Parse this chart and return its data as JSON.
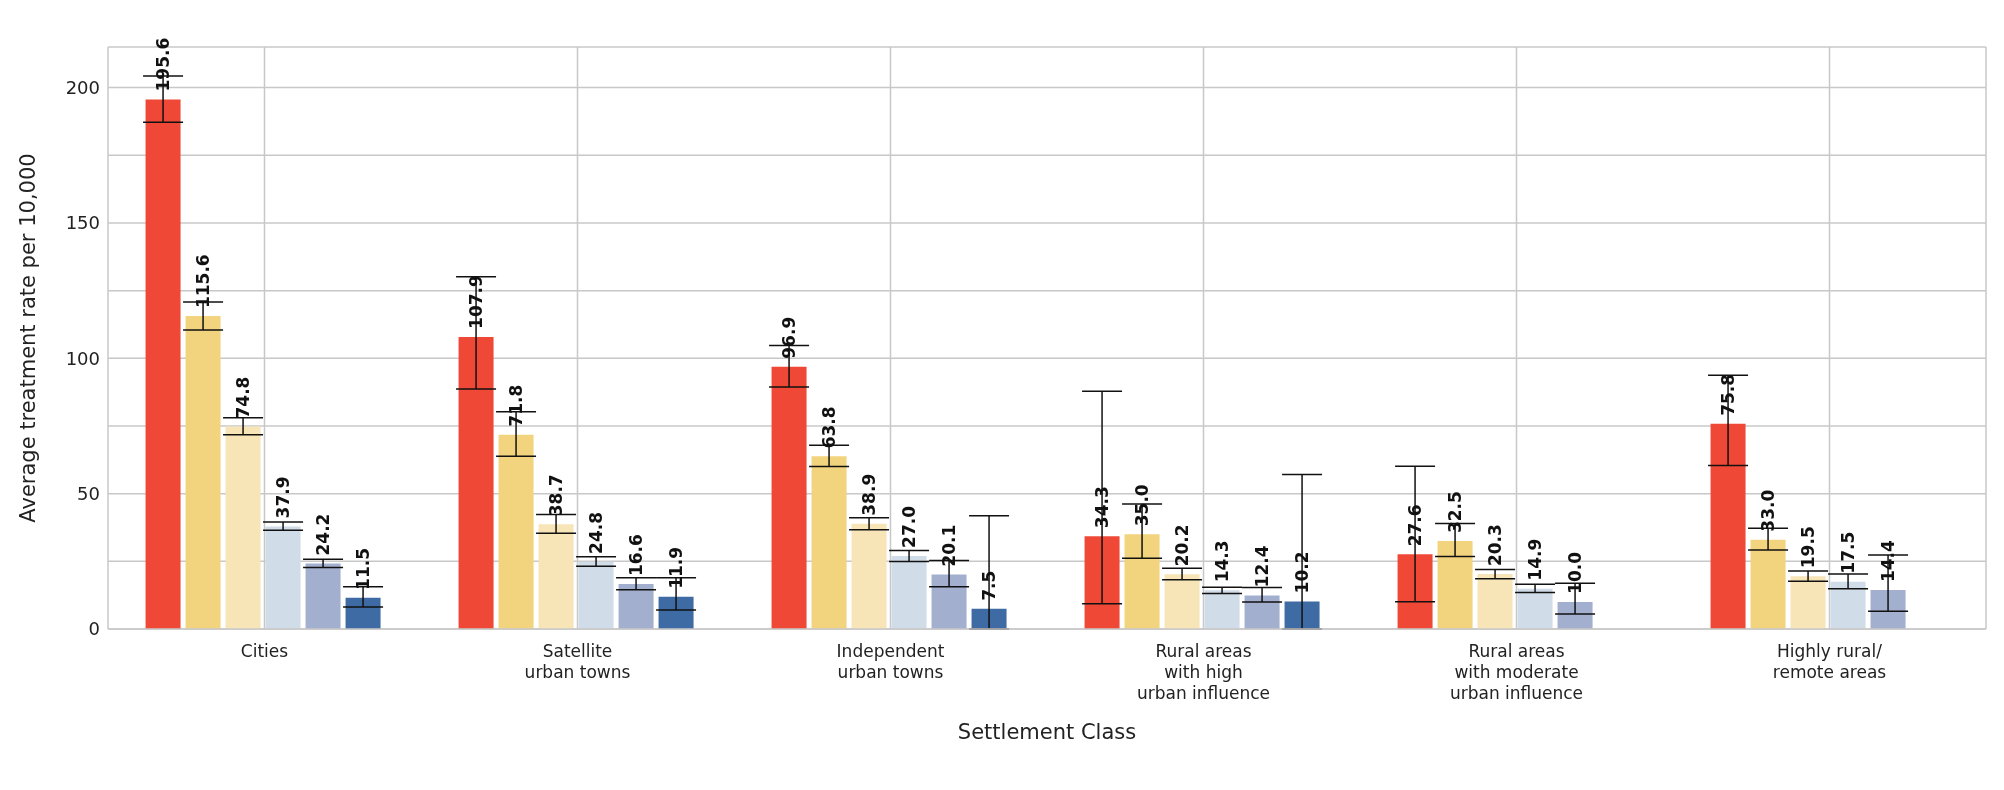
{
  "chart_data": {
    "type": "bar",
    "xlabel": "Settlement Class",
    "ylabel": "Average treatment rate per 10,000",
    "categories": [
      "Cities",
      "Satellite\nurban towns",
      "Independent\nurban towns",
      "Rural areas\nwith high\nurban influence",
      "Rural areas\nwith moderate\nurban influence",
      "Highly rural/\nremote areas"
    ],
    "series": [
      {
        "color": "#ef4836",
        "value_labels": [
          "195.6",
          "107.9",
          "96.9",
          "34.3",
          "27.6",
          "75.8"
        ],
        "values": [
          195.6,
          107.9,
          96.9,
          34.3,
          27.6,
          75.8
        ],
        "errors": [
          [
            187.2,
            204.3
          ],
          [
            88.7,
            130.1
          ],
          [
            89.4,
            104.7
          ],
          [
            9.3,
            87.8
          ],
          [
            10.1,
            60.1
          ],
          [
            60.4,
            93.7
          ]
        ]
      },
      {
        "color": "#f2d37e",
        "value_labels": [
          "115.6",
          "71.8",
          "63.8",
          "35.0",
          "32.5",
          "33.0"
        ],
        "values": [
          115.6,
          71.8,
          63.8,
          35.0,
          32.5,
          33.0
        ],
        "errors": [
          [
            110.5,
            120.8
          ],
          [
            63.8,
            80.3
          ],
          [
            60.0,
            67.9
          ],
          [
            26.1,
            46.2
          ],
          [
            26.8,
            39.0
          ],
          [
            29.2,
            37.2
          ]
        ]
      },
      {
        "color": "#f7e5b7",
        "value_labels": [
          "74.8",
          "38.7",
          "38.9",
          "20.2",
          "20.3",
          "19.5"
        ],
        "values": [
          74.8,
          38.7,
          38.9,
          20.2,
          20.3,
          19.5
        ],
        "errors": [
          [
            71.8,
            78.0
          ],
          [
            35.4,
            42.3
          ],
          [
            36.7,
            41.1
          ],
          [
            18.2,
            22.4
          ],
          [
            18.6,
            22.0
          ],
          [
            17.6,
            21.4
          ]
        ]
      },
      {
        "color": "#d0dce8",
        "value_labels": [
          "37.9",
          "24.8",
          "27.0",
          "14.3",
          "14.9",
          "17.5"
        ],
        "values": [
          37.9,
          24.8,
          27.0,
          14.3,
          14.9,
          17.5
        ],
        "errors": [
          [
            36.5,
            39.5
          ],
          [
            23.2,
            26.7
          ],
          [
            24.9,
            29.0
          ],
          [
            13.1,
            15.4
          ],
          [
            13.5,
            16.5
          ],
          [
            14.9,
            20.3
          ]
        ]
      },
      {
        "color": "#a2afcf",
        "value_labels": [
          "24.2",
          "16.6",
          "20.1",
          "12.4",
          "10.0",
          "14.4"
        ],
        "values": [
          24.2,
          16.6,
          20.1,
          12.4,
          10.0,
          14.4
        ],
        "errors": [
          [
            22.7,
            25.8
          ],
          [
            14.5,
            18.9
          ],
          [
            15.6,
            25.3
          ],
          [
            10.0,
            15.3
          ],
          [
            5.5,
            16.9
          ],
          [
            6.6,
            27.3
          ]
        ]
      },
      {
        "color": "#3f6ba4",
        "value_labels": [
          "11.5",
          "11.9",
          "7.5",
          "10.2",
          null,
          null
        ],
        "values": [
          11.5,
          11.9,
          7.5,
          10.2,
          null,
          null
        ],
        "errors": [
          [
            8.1,
            15.6
          ],
          [
            7.0,
            18.9
          ],
          [
            0,
            41.8
          ],
          [
            0,
            57.1
          ],
          null,
          null
        ]
      }
    ],
    "ylim": [
      0,
      215
    ],
    "yticks": [
      0,
      {
        "value": 25,
        "label": null
      },
      50,
      {
        "value": 75,
        "label": null
      },
      100,
      {
        "value": 125,
        "label": null
      },
      150,
      {
        "value": 175,
        "label": null
      },
      200
    ],
    "grid": true
  }
}
